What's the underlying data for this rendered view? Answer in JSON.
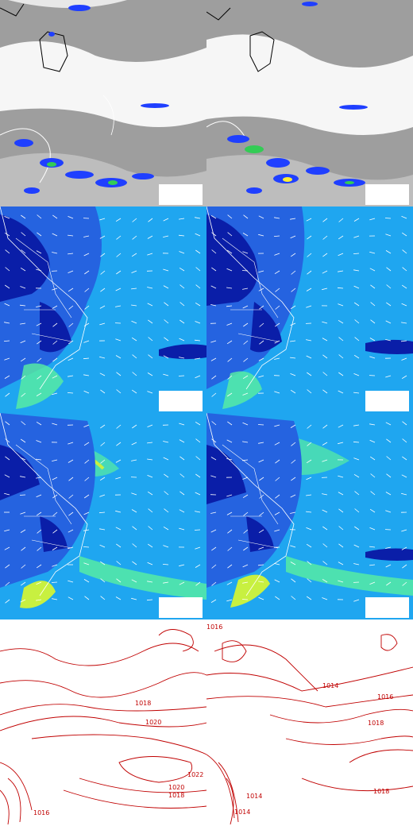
{
  "colors": {
    "cloud_gray": "#9e9e9e",
    "cloud_white": "#ffffff",
    "precip_blue": "#1f3fff",
    "precip_green": "#33cc55",
    "precip_yellow": "#ffee33",
    "ocean_cyan": "#1fa6f0",
    "deep_blue": "#0a1ea8",
    "mid_blue": "#2563e0",
    "light_green": "#59f0a0",
    "yellow_green": "#c8f040",
    "border_white": "#ffffff",
    "border_black": "#000000",
    "isobar_red": "#c00000"
  },
  "panels": [
    {
      "row": 1,
      "col": 1,
      "kind": "satellite-clouds"
    },
    {
      "row": 1,
      "col": 2,
      "kind": "satellite-clouds"
    },
    {
      "row": 2,
      "col": 1,
      "kind": "wind-field"
    },
    {
      "row": 2,
      "col": 2,
      "kind": "wind-field"
    },
    {
      "row": 3,
      "col": 1,
      "kind": "wind-field"
    },
    {
      "row": 3,
      "col": 2,
      "kind": "wind-field"
    },
    {
      "row": 4,
      "col": 1,
      "kind": "pressure-isobars"
    },
    {
      "row": 4,
      "col": 2,
      "kind": "pressure-isobars"
    }
  ],
  "isobar_labels_left": [
    "1018",
    "1020",
    "1022",
    "1020",
    "1018",
    "1016"
  ],
  "isobar_labels_right": [
    "1016",
    "1014",
    "1016",
    "1018",
    "1018",
    "1014",
    "1014"
  ]
}
